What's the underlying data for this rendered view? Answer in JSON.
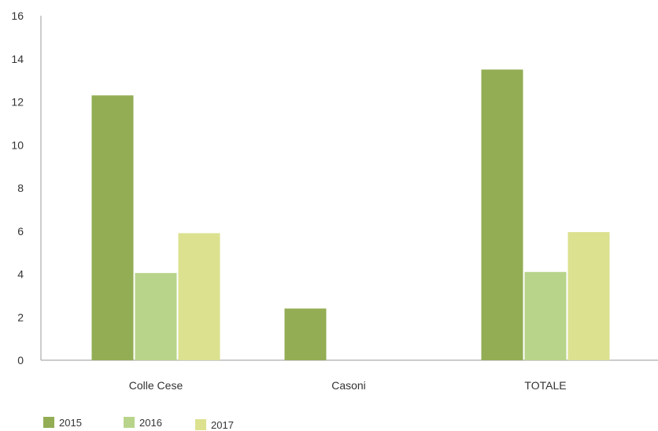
{
  "colors": {
    "series_2015": "#92ad53",
    "series_2016": "#b8d48a",
    "series_2017": "#dbe18f",
    "axis": "#999999",
    "text": "#333333"
  },
  "chart_data": {
    "type": "bar",
    "categories": [
      "Colle Cese",
      "Casoni",
      "TOTALE"
    ],
    "series": [
      {
        "name": "2015",
        "values": [
          12.3,
          2.4,
          13.5
        ]
      },
      {
        "name": "2016",
        "values": [
          4.05,
          0,
          4.1
        ]
      },
      {
        "name": "2017",
        "values": [
          5.9,
          0,
          5.95
        ]
      }
    ],
    "ylim": [
      0,
      16
    ],
    "yticks": [
      0,
      2,
      4,
      6,
      8,
      10,
      12,
      14,
      16
    ],
    "title": "",
    "xlabel": "",
    "ylabel": "",
    "grid": false,
    "legend_position": "bottom-left"
  }
}
